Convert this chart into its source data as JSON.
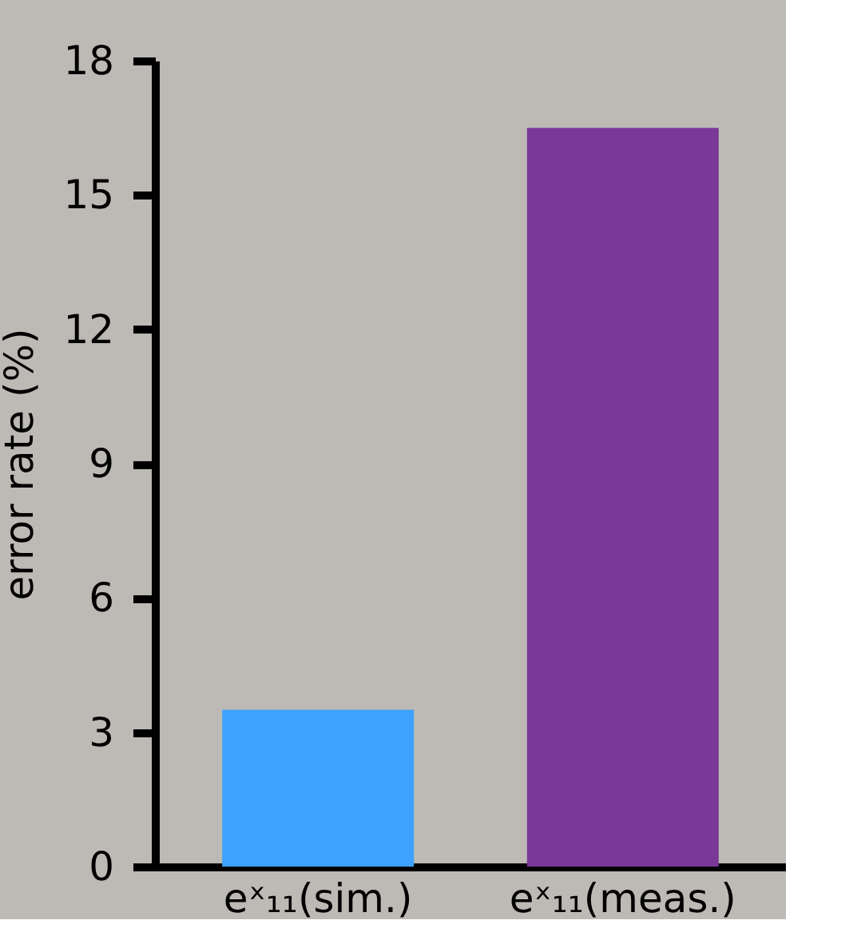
{
  "chart_data": {
    "type": "bar",
    "ylabel": "error rate (%)",
    "categories": [
      "eˣ₁₁(sim.)",
      "eˣ₁₁(meas.)"
    ],
    "values": [
      3.5,
      16.5
    ],
    "colors": [
      "#3ea2fe",
      "#7a3898"
    ],
    "ylim": [
      0,
      18
    ],
    "yticks": [
      0,
      3,
      6,
      9,
      12,
      15,
      18
    ],
    "grid": false,
    "legend": false
  }
}
